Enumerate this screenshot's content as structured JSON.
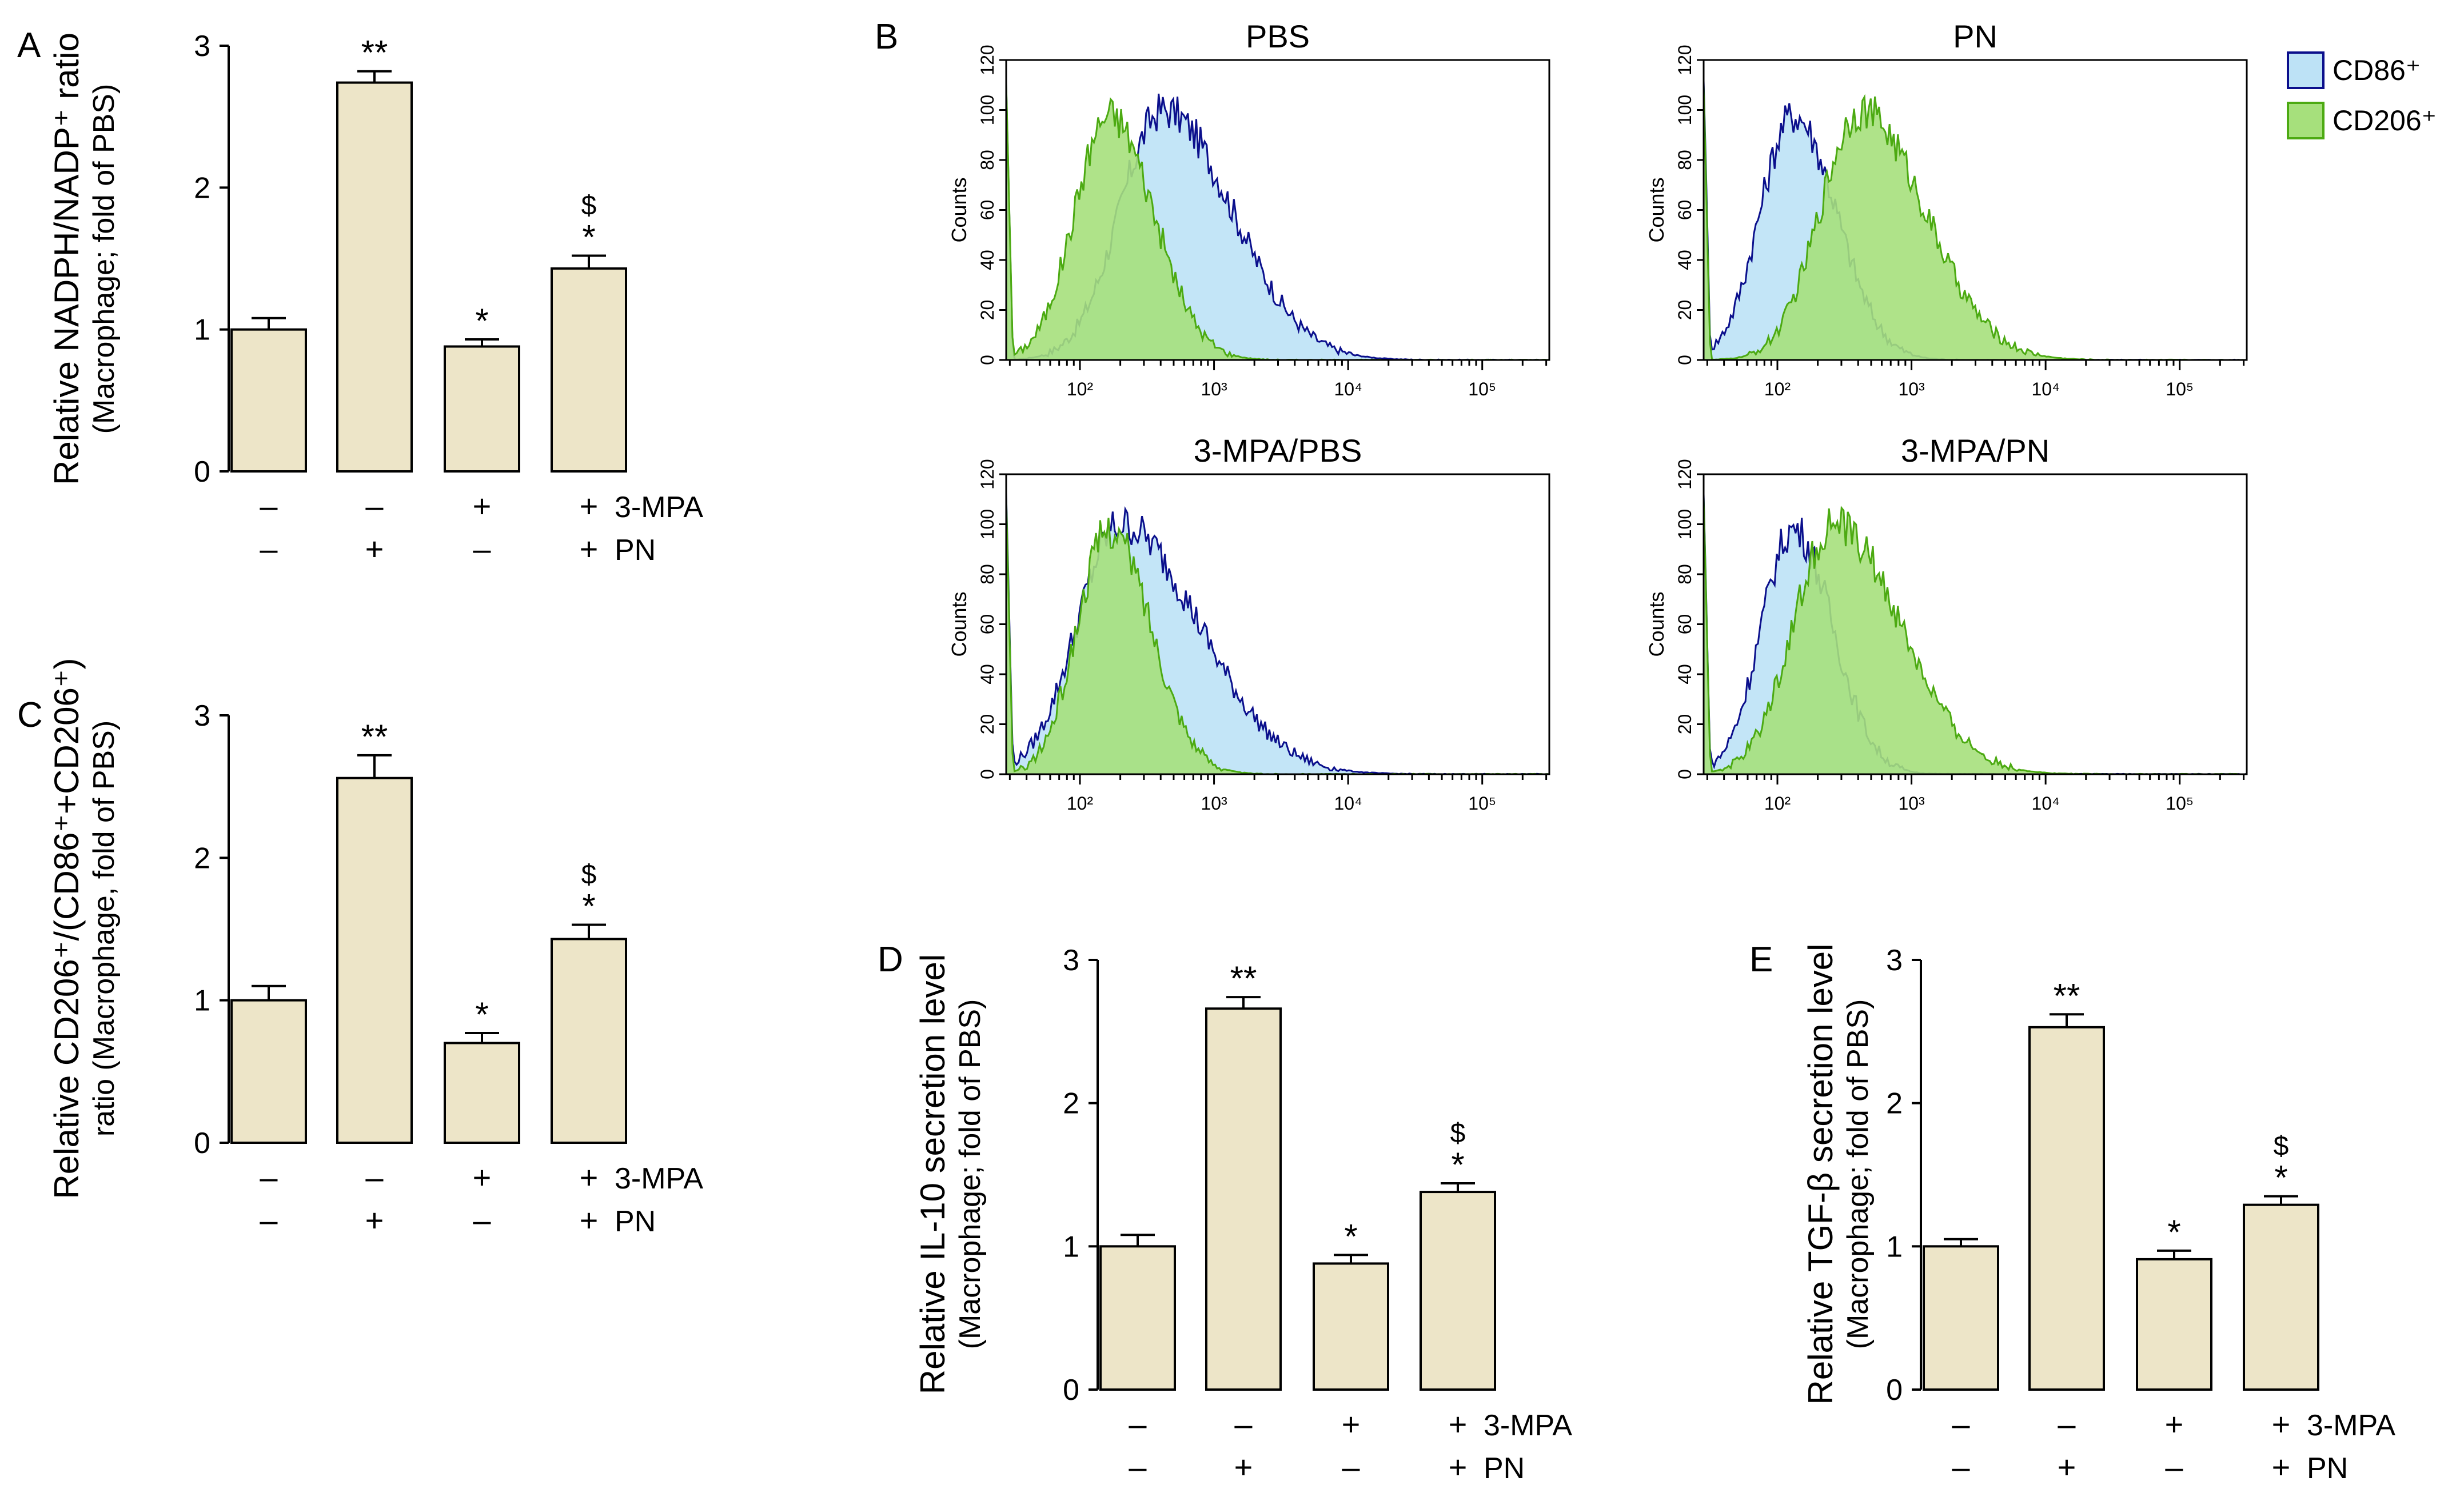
{
  "colors": {
    "bar_fill": "#ede5c8",
    "bar_stroke": "#000000",
    "cd86_fill": "#bde2f6",
    "cd86_line": "#0b0f8c",
    "cd206_fill": "#a6e07c",
    "cd206_line": "#4caa12"
  },
  "rows": {
    "mpa": "3-MPA",
    "pn": "PN"
  },
  "chart_data": [
    {
      "id": "A",
      "type": "bar",
      "panel_label": "A",
      "ylabel_main": "Relative NADPH/NADP⁺ ratio",
      "ylabel_sub": "(Macrophage; fold of PBS)",
      "ylim": [
        0,
        3
      ],
      "yticks": [
        "0",
        "1",
        "2",
        "3"
      ],
      "values": [
        1.0,
        2.74,
        0.88,
        1.43
      ],
      "errors": [
        0.08,
        0.08,
        0.05,
        0.09
      ],
      "annotations": [
        "",
        "**",
        "*",
        "*"
      ],
      "annotations2": [
        "",
        "",
        "",
        "$"
      ],
      "row_mpa": [
        "–",
        "–",
        "+",
        "+"
      ],
      "row_pn": [
        "–",
        "+",
        "–",
        "+"
      ]
    },
    {
      "id": "C",
      "type": "bar",
      "panel_label": "C",
      "ylabel_main": "Relative CD206⁺/(CD86⁺+CD206⁺)",
      "ylabel_sub": "ratio (Macrophage, fold of PBS)",
      "ylim": [
        0,
        3
      ],
      "yticks": [
        "0",
        "1",
        "2",
        "3"
      ],
      "values": [
        1.0,
        2.56,
        0.7,
        1.43
      ],
      "errors": [
        0.1,
        0.16,
        0.07,
        0.1
      ],
      "annotations": [
        "",
        "**",
        "*",
        "*"
      ],
      "annotations2": [
        "",
        "",
        "",
        "$"
      ],
      "row_mpa": [
        "–",
        "–",
        "+",
        "+"
      ],
      "row_pn": [
        "–",
        "+",
        "–",
        "+"
      ]
    },
    {
      "id": "D",
      "type": "bar",
      "panel_label": "D",
      "ylabel_main": "Relative IL-10 secretion level",
      "ylabel_sub": "(Macrophage; fold of PBS)",
      "ylim": [
        0,
        3
      ],
      "yticks": [
        "0",
        "1",
        "2",
        "3"
      ],
      "values": [
        1.0,
        2.66,
        0.88,
        1.38
      ],
      "errors": [
        0.08,
        0.08,
        0.06,
        0.06
      ],
      "annotations": [
        "",
        "**",
        "*",
        "*"
      ],
      "annotations2": [
        "",
        "",
        "",
        "$"
      ],
      "row_mpa": [
        "–",
        "–",
        "+",
        "+"
      ],
      "row_pn": [
        "–",
        "+",
        "–",
        "+"
      ]
    },
    {
      "id": "E",
      "type": "bar",
      "panel_label": "E",
      "ylabel_main": "Relative TGF-β secretion level",
      "ylabel_sub": "(Macrophage; fold of PBS)",
      "ylim": [
        0,
        3
      ],
      "yticks": [
        "0",
        "1",
        "2",
        "3"
      ],
      "values": [
        1.0,
        2.53,
        0.91,
        1.29
      ],
      "errors": [
        0.05,
        0.09,
        0.06,
        0.06
      ],
      "annotations": [
        "",
        "**",
        "*",
        "*"
      ],
      "annotations2": [
        "",
        "",
        "",
        "$"
      ],
      "row_mpa": [
        "–",
        "–",
        "+",
        "+"
      ],
      "row_pn": [
        "–",
        "+",
        "–",
        "+"
      ]
    },
    {
      "id": "B",
      "type": "area",
      "panel_label": "B",
      "ylabel": "Counts",
      "ylim": [
        0,
        120
      ],
      "yticks": [
        "0",
        "20",
        "40",
        "60",
        "80",
        "100",
        "120"
      ],
      "xscale": "log",
      "xlim_log10": [
        1.45,
        5.5
      ],
      "xticks": [
        "10²",
        "10³",
        "10⁴",
        "10⁵"
      ],
      "legend": [
        "CD86⁺",
        "CD206⁺"
      ],
      "subplots": [
        {
          "title": "PBS",
          "cd86": {
            "peak_log10": 2.62,
            "width": 0.32,
            "height": 100,
            "tail": 0.55
          },
          "cd206": {
            "peak_log10": 2.22,
            "width": 0.26,
            "height": 98,
            "tail": 0.2
          }
        },
        {
          "title": "PN",
          "cd86": {
            "peak_log10": 2.12,
            "width": 0.25,
            "height": 98,
            "tail": 0.2
          },
          "cd206": {
            "peak_log10": 2.62,
            "width": 0.3,
            "height": 100,
            "tail": 0.5
          }
        },
        {
          "title": "3-MPA/PBS",
          "cd86": {
            "peak_log10": 2.3,
            "width": 0.32,
            "height": 100,
            "tail": 0.75
          },
          "cd206": {
            "peak_log10": 2.22,
            "width": 0.24,
            "height": 98,
            "tail": 0.2
          }
        },
        {
          "title": "3-MPA/PN",
          "cd86": {
            "peak_log10": 2.12,
            "width": 0.24,
            "height": 98,
            "tail": 0.15
          },
          "cd206": {
            "peak_log10": 2.42,
            "width": 0.3,
            "height": 100,
            "tail": 0.55
          }
        }
      ]
    }
  ]
}
